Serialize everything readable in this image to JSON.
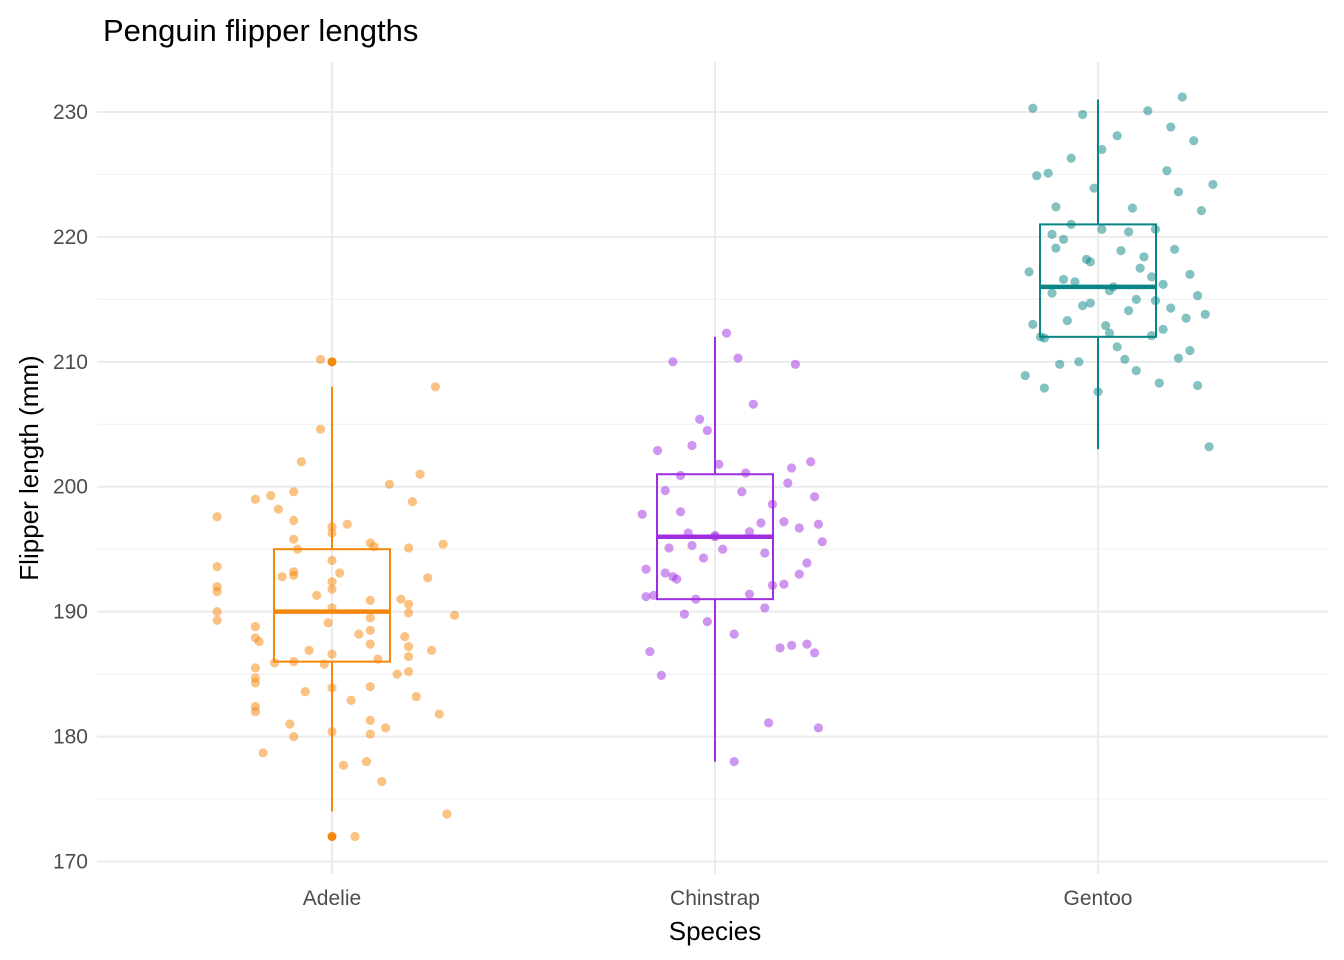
{
  "chart_data": {
    "type": "box-jitter",
    "title": "Penguin flipper lengths",
    "xlabel": "Species",
    "ylabel": "Flipper length (mm)",
    "categories": [
      "Adelie",
      "Chinstrap",
      "Gentoo"
    ],
    "ylim": [
      169,
      234
    ],
    "yticks": [
      170,
      180,
      190,
      200,
      210,
      220,
      230
    ],
    "y_minor": [
      175,
      185,
      195,
      205,
      215,
      225
    ],
    "grid": true,
    "legend": "none",
    "colors": {
      "Adelie": "#f5870a",
      "Chinstrap": "#9f2ee0",
      "Gentoo": "#0a8585"
    },
    "boxes": [
      {
        "species": "Adelie",
        "whisker_low": 174,
        "q1": 186,
        "median": 190,
        "q3": 195,
        "whisker_high": 208,
        "outliers": [
          172,
          210
        ]
      },
      {
        "species": "Chinstrap",
        "whisker_low": 178,
        "q1": 191,
        "median": 196,
        "q3": 201,
        "whisker_high": 212,
        "outliers": []
      },
      {
        "species": "Gentoo",
        "whisker_low": 203,
        "q1": 212,
        "median": 216,
        "q3": 221,
        "whisker_high": 231,
        "outliers": []
      }
    ],
    "points": {
      "Adelie": [
        {
          "x": -0.19,
          "y": 187.6
        },
        {
          "x": -0.18,
          "y": 178.7
        },
        {
          "x": -0.16,
          "y": 199.3
        },
        {
          "x": -0.15,
          "y": 185.9
        },
        {
          "x": -0.14,
          "y": 198.2
        },
        {
          "x": -0.13,
          "y": 192.8
        },
        {
          "x": -0.11,
          "y": 181.0
        },
        {
          "x": -0.1,
          "y": 180.0
        },
        {
          "x": -0.09,
          "y": 195.0
        },
        {
          "x": -0.08,
          "y": 202.0
        },
        {
          "x": -0.07,
          "y": 183.6
        },
        {
          "x": -0.06,
          "y": 186.9
        },
        {
          "x": -0.04,
          "y": 191.3
        },
        {
          "x": -0.03,
          "y": 204.6
        },
        {
          "x": -0.03,
          "y": 210.2
        },
        {
          "x": -0.02,
          "y": 185.8
        },
        {
          "x": -0.01,
          "y": 189.1
        },
        {
          "x": 0.0,
          "y": 190.3
        },
        {
          "x": 0.02,
          "y": 193.1
        },
        {
          "x": 0.03,
          "y": 177.7
        },
        {
          "x": 0.04,
          "y": 197.0
        },
        {
          "x": 0.05,
          "y": 182.9
        },
        {
          "x": 0.06,
          "y": 172.0
        },
        {
          "x": 0.07,
          "y": 188.2
        },
        {
          "x": 0.09,
          "y": 178.0
        },
        {
          "x": 0.1,
          "y": 181.3
        },
        {
          "x": 0.11,
          "y": 195.2
        },
        {
          "x": 0.12,
          "y": 186.2
        },
        {
          "x": 0.13,
          "y": 176.4
        },
        {
          "x": 0.14,
          "y": 180.7
        },
        {
          "x": 0.15,
          "y": 200.2
        },
        {
          "x": 0.17,
          "y": 185.0
        },
        {
          "x": 0.18,
          "y": 191.0
        },
        {
          "x": 0.19,
          "y": 188.0
        },
        {
          "x": 0.21,
          "y": 198.8
        },
        {
          "x": 0.22,
          "y": 183.2
        },
        {
          "x": 0.23,
          "y": 201.0
        },
        {
          "x": 0.25,
          "y": 192.7
        },
        {
          "x": 0.26,
          "y": 186.9
        },
        {
          "x": 0.27,
          "y": 208.0
        },
        {
          "x": 0.28,
          "y": 181.8
        },
        {
          "x": 0.29,
          "y": 195.4
        },
        {
          "x": 0.3,
          "y": 173.8
        },
        {
          "x": 0.32,
          "y": 189.7
        },
        {
          "x": 0.33,
          "y": 196.8
        },
        {
          "x": 0.34,
          "y": 184.0
        },
        {
          "x": 0.35,
          "y": 190.6
        },
        {
          "x": 0.37,
          "y": 182.4
        },
        {
          "x": 0.38,
          "y": 193.2
        },
        {
          "x": 0.39,
          "y": 186.6
        },
        {
          "x": 0.4,
          "y": 180.2
        },
        {
          "x": 0.42,
          "y": 197.6
        },
        {
          "x": 0.43,
          "y": 184.3
        },
        {
          "x": 0.45,
          "y": 191.8
        },
        {
          "x": 0.46,
          "y": 195.5
        },
        {
          "x": 0.47,
          "y": 187.2
        },
        {
          "x": 0.49,
          "y": 199.0
        },
        {
          "x": 0.5,
          "y": 186.0
        },
        {
          "x": 0.51,
          "y": 192.4
        },
        {
          "x": 0.52,
          "y": 189.5
        },
        {
          "x": 0.53,
          "y": 185.2
        },
        {
          "x": 0.55,
          "y": 188.8
        },
        {
          "x": 0.56,
          "y": 195.8
        },
        {
          "x": 0.57,
          "y": 180.4
        },
        {
          "x": 0.58,
          "y": 190.9
        },
        {
          "x": 0.6,
          "y": 193.6
        },
        {
          "x": 0.61,
          "y": 187.9
        },
        {
          "x": 0.62,
          "y": 197.3
        },
        {
          "x": 0.63,
          "y": 183.9
        },
        {
          "x": 0.65,
          "y": 189.9
        },
        {
          "x": 0.66,
          "y": 192.0
        },
        {
          "x": 0.67,
          "y": 184.7
        },
        {
          "x": 0.69,
          "y": 196.3
        },
        {
          "x": 0.7,
          "y": 188.5
        },
        {
          "x": 0.72,
          "y": 191.6
        },
        {
          "x": 0.73,
          "y": 185.5
        },
        {
          "x": 0.74,
          "y": 199.6
        },
        {
          "x": 0.75,
          "y": 194.1
        },
        {
          "x": 0.77,
          "y": 186.4
        },
        {
          "x": 0.78,
          "y": 190.0
        },
        {
          "x": 0.79,
          "y": 182.0
        },
        {
          "x": 0.8,
          "y": 192.9
        },
        {
          "x": 0.82,
          "y": 187.4
        },
        {
          "x": 0.83,
          "y": 195.1
        },
        {
          "x": 0.84,
          "y": 189.3
        }
      ],
      "Chinstrap": [
        {
          "x": -0.19,
          "y": 197.8
        },
        {
          "x": -0.18,
          "y": 193.4
        },
        {
          "x": -0.17,
          "y": 186.8
        },
        {
          "x": -0.16,
          "y": 191.3
        },
        {
          "x": -0.15,
          "y": 202.9
        },
        {
          "x": -0.14,
          "y": 184.9
        },
        {
          "x": -0.13,
          "y": 199.7
        },
        {
          "x": -0.12,
          "y": 195.1
        },
        {
          "x": -0.11,
          "y": 210.0
        },
        {
          "x": -0.1,
          "y": 192.6
        },
        {
          "x": -0.09,
          "y": 200.9
        },
        {
          "x": -0.08,
          "y": 189.8
        },
        {
          "x": -0.07,
          "y": 196.3
        },
        {
          "x": -0.06,
          "y": 203.3
        },
        {
          "x": -0.05,
          "y": 191.0
        },
        {
          "x": -0.04,
          "y": 205.4
        },
        {
          "x": -0.03,
          "y": 194.3
        },
        {
          "x": -0.02,
          "y": 189.2
        },
        {
          "x": 0.0,
          "y": 196.0
        },
        {
          "x": 0.01,
          "y": 201.8
        },
        {
          "x": 0.02,
          "y": 195.0
        },
        {
          "x": 0.03,
          "y": 212.3
        },
        {
          "x": 0.05,
          "y": 188.2
        },
        {
          "x": 0.06,
          "y": 210.3
        },
        {
          "x": 0.07,
          "y": 199.6
        },
        {
          "x": 0.09,
          "y": 191.4
        },
        {
          "x": 0.1,
          "y": 206.6
        },
        {
          "x": 0.12,
          "y": 197.1
        },
        {
          "x": 0.13,
          "y": 194.7
        },
        {
          "x": 0.14,
          "y": 181.1
        },
        {
          "x": 0.15,
          "y": 198.6
        },
        {
          "x": 0.17,
          "y": 187.1
        },
        {
          "x": 0.18,
          "y": 192.2
        },
        {
          "x": 0.19,
          "y": 200.3
        },
        {
          "x": 0.2,
          "y": 187.3
        },
        {
          "x": 0.21,
          "y": 209.8
        },
        {
          "x": 0.22,
          "y": 196.7
        },
        {
          "x": 0.24,
          "y": 193.9
        },
        {
          "x": 0.25,
          "y": 202.0
        },
        {
          "x": 0.26,
          "y": 186.7
        },
        {
          "x": 0.27,
          "y": 180.7
        },
        {
          "x": 0.28,
          "y": 195.6
        },
        {
          "x": -0.18,
          "y": 191.2
        },
        {
          "x": 0.15,
          "y": 192.1
        },
        {
          "x": 0.05,
          "y": 178.0
        },
        {
          "x": -0.09,
          "y": 198.0
        },
        {
          "x": 0.18,
          "y": 197.2
        },
        {
          "x": 0.26,
          "y": 199.2
        },
        {
          "x": -0.13,
          "y": 193.1
        },
        {
          "x": 0.27,
          "y": 197.0
        },
        {
          "x": 0.08,
          "y": 201.1
        },
        {
          "x": -0.02,
          "y": 204.5
        },
        {
          "x": 0.24,
          "y": 187.4
        },
        {
          "x": -0.06,
          "y": 195.3
        },
        {
          "x": 0.13,
          "y": 190.3
        },
        {
          "x": 0.2,
          "y": 201.5
        },
        {
          "x": 0.0,
          "y": 196.1
        },
        {
          "x": 0.22,
          "y": 193.0
        },
        {
          "x": 0.09,
          "y": 196.4
        },
        {
          "x": -0.11,
          "y": 192.8
        }
      ],
      "Gentoo": [
        {
          "x": -0.19,
          "y": 208.9
        },
        {
          "x": -0.18,
          "y": 217.2
        },
        {
          "x": -0.17,
          "y": 230.3
        },
        {
          "x": -0.16,
          "y": 224.9
        },
        {
          "x": -0.15,
          "y": 212.0
        },
        {
          "x": -0.14,
          "y": 207.9
        },
        {
          "x": -0.13,
          "y": 225.1
        },
        {
          "x": -0.12,
          "y": 215.5
        },
        {
          "x": -0.11,
          "y": 222.4
        },
        {
          "x": -0.1,
          "y": 209.8
        },
        {
          "x": -0.09,
          "y": 219.8
        },
        {
          "x": -0.08,
          "y": 213.3
        },
        {
          "x": -0.07,
          "y": 226.3
        },
        {
          "x": -0.06,
          "y": 216.4
        },
        {
          "x": -0.05,
          "y": 210.0
        },
        {
          "x": -0.04,
          "y": 229.8
        },
        {
          "x": -0.03,
          "y": 218.2
        },
        {
          "x": -0.02,
          "y": 214.7
        },
        {
          "x": -0.01,
          "y": 223.9
        },
        {
          "x": 0.0,
          "y": 207.6
        },
        {
          "x": 0.01,
          "y": 220.6
        },
        {
          "x": 0.02,
          "y": 212.9
        },
        {
          "x": 0.04,
          "y": 216.0
        },
        {
          "x": 0.05,
          "y": 228.1
        },
        {
          "x": 0.06,
          "y": 218.9
        },
        {
          "x": 0.07,
          "y": 210.2
        },
        {
          "x": 0.08,
          "y": 214.1
        },
        {
          "x": 0.09,
          "y": 222.3
        },
        {
          "x": 0.1,
          "y": 215.0
        },
        {
          "x": 0.11,
          "y": 217.5
        },
        {
          "x": 0.13,
          "y": 230.1
        },
        {
          "x": 0.14,
          "y": 212.1
        },
        {
          "x": 0.15,
          "y": 220.6
        },
        {
          "x": 0.16,
          "y": 208.3
        },
        {
          "x": 0.17,
          "y": 216.2
        },
        {
          "x": 0.18,
          "y": 225.3
        },
        {
          "x": 0.19,
          "y": 214.3
        },
        {
          "x": 0.2,
          "y": 219.0
        },
        {
          "x": 0.21,
          "y": 210.3
        },
        {
          "x": 0.22,
          "y": 231.2
        },
        {
          "x": 0.23,
          "y": 213.5
        },
        {
          "x": 0.24,
          "y": 217.0
        },
        {
          "x": 0.25,
          "y": 227.7
        },
        {
          "x": 0.26,
          "y": 208.1
        },
        {
          "x": 0.27,
          "y": 222.1
        },
        {
          "x": 0.28,
          "y": 213.8
        },
        {
          "x": 0.29,
          "y": 203.2
        },
        {
          "x": 0.3,
          "y": 224.2
        },
        {
          "x": -0.14,
          "y": 211.9
        },
        {
          "x": -0.07,
          "y": 221.0
        },
        {
          "x": -0.02,
          "y": 218.0
        },
        {
          "x": 0.03,
          "y": 215.7
        },
        {
          "x": 0.1,
          "y": 209.3
        },
        {
          "x": 0.17,
          "y": 212.6
        },
        {
          "x": 0.21,
          "y": 223.6
        },
        {
          "x": -0.11,
          "y": 219.1
        },
        {
          "x": 0.05,
          "y": 211.2
        },
        {
          "x": 0.14,
          "y": 216.8
        },
        {
          "x": 0.26,
          "y": 215.3
        },
        {
          "x": -0.04,
          "y": 214.5
        },
        {
          "x": 0.01,
          "y": 227.0
        },
        {
          "x": 0.12,
          "y": 218.4
        },
        {
          "x": -0.17,
          "y": 213.0
        },
        {
          "x": 0.08,
          "y": 220.4
        },
        {
          "x": 0.24,
          "y": 210.9
        },
        {
          "x": -0.09,
          "y": 216.6
        },
        {
          "x": 0.19,
          "y": 228.8
        },
        {
          "x": -0.12,
          "y": 220.2
        },
        {
          "x": 0.03,
          "y": 212.3
        },
        {
          "x": 0.15,
          "y": 214.9
        }
      ]
    }
  }
}
